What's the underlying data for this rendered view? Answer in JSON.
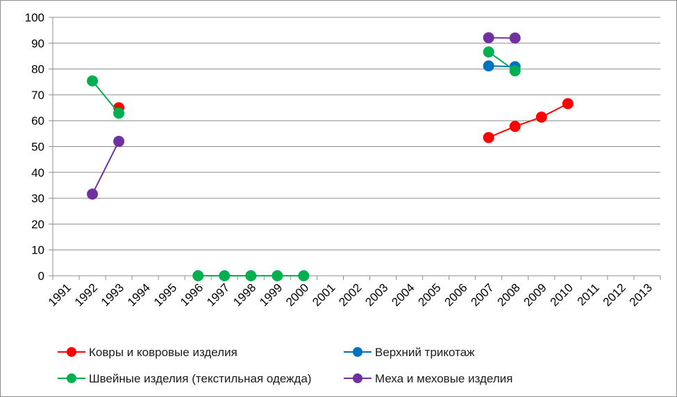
{
  "chart_data": {
    "type": "line",
    "title": "",
    "xlabel": "",
    "ylabel": "",
    "ylim": [
      0,
      100
    ],
    "y_ticks": [
      0,
      10,
      20,
      30,
      40,
      50,
      60,
      70,
      80,
      90,
      100
    ],
    "categories": [
      "1991",
      "1992",
      "1993",
      "1994",
      "1995",
      "1996",
      "1997",
      "1998",
      "1999",
      "2000",
      "2001",
      "2002",
      "2003",
      "2004",
      "2005",
      "2006",
      "2007",
      "2008",
      "2009",
      "2010",
      "2011",
      "2012",
      "2013"
    ],
    "grid": "horizontal",
    "legend_position": "bottom",
    "series": [
      {
        "name": "Ковры и ковровые изделия",
        "color": "#ff0000",
        "values": [
          null,
          null,
          65,
          null,
          null,
          null,
          null,
          null,
          null,
          null,
          null,
          null,
          null,
          null,
          null,
          null,
          53.5,
          57.8,
          61.4,
          66.6,
          null,
          null,
          null
        ]
      },
      {
        "name": "Верхний трикотаж",
        "color": "#0070c0",
        "values": [
          null,
          null,
          null,
          null,
          null,
          null,
          null,
          null,
          null,
          null,
          null,
          null,
          null,
          null,
          null,
          null,
          81.2,
          80.9,
          null,
          null,
          null,
          null,
          null
        ]
      },
      {
        "name": "Швейные изделия (текстильная одежда)",
        "color": "#00b050",
        "values": [
          null,
          75.4,
          62.9,
          null,
          null,
          0,
          0,
          0,
          0,
          0,
          null,
          null,
          null,
          null,
          null,
          null,
          86.6,
          79.3,
          null,
          null,
          null,
          null,
          null
        ]
      },
      {
        "name": "Меха и меховые изделия",
        "color": "#7030a0",
        "values": [
          null,
          31.6,
          52,
          null,
          null,
          null,
          null,
          null,
          null,
          null,
          null,
          null,
          null,
          null,
          null,
          null,
          92.1,
          92,
          null,
          null,
          null,
          null,
          null
        ]
      }
    ]
  }
}
